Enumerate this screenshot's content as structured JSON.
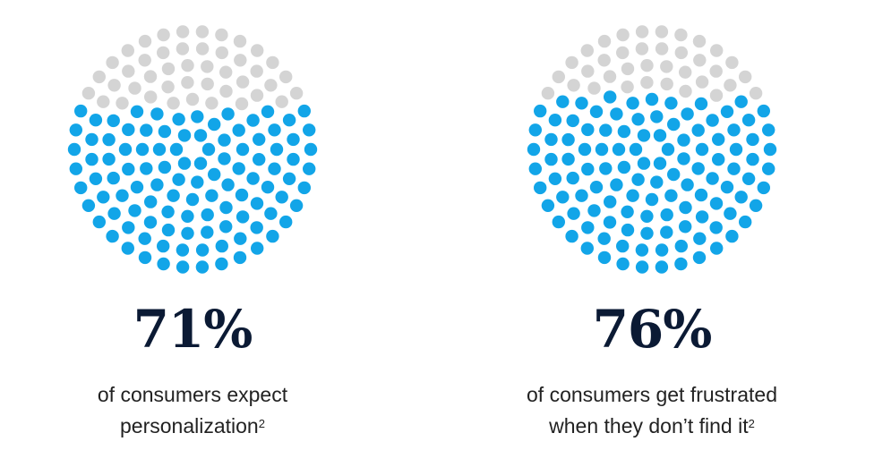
{
  "colors": {
    "filled": "#12a5e8",
    "empty": "#d4d4d4",
    "heading": "#0b1a34"
  },
  "stats": [
    {
      "value_label": "71%",
      "line1": "of consumers expect",
      "line2": "personalization",
      "footnote": "2"
    },
    {
      "value_label": "76%",
      "line1": "of consumers get frustrated",
      "line2": "when they don’t find it",
      "footnote": "2"
    }
  ],
  "chart_data": [
    {
      "type": "pie",
      "values": [
        71,
        29
      ],
      "labels": [
        "71%",
        ""
      ],
      "style": "dot-pattern"
    },
    {
      "type": "pie",
      "values": [
        76,
        24
      ],
      "labels": [
        "76%",
        ""
      ],
      "style": "dot-pattern"
    }
  ]
}
